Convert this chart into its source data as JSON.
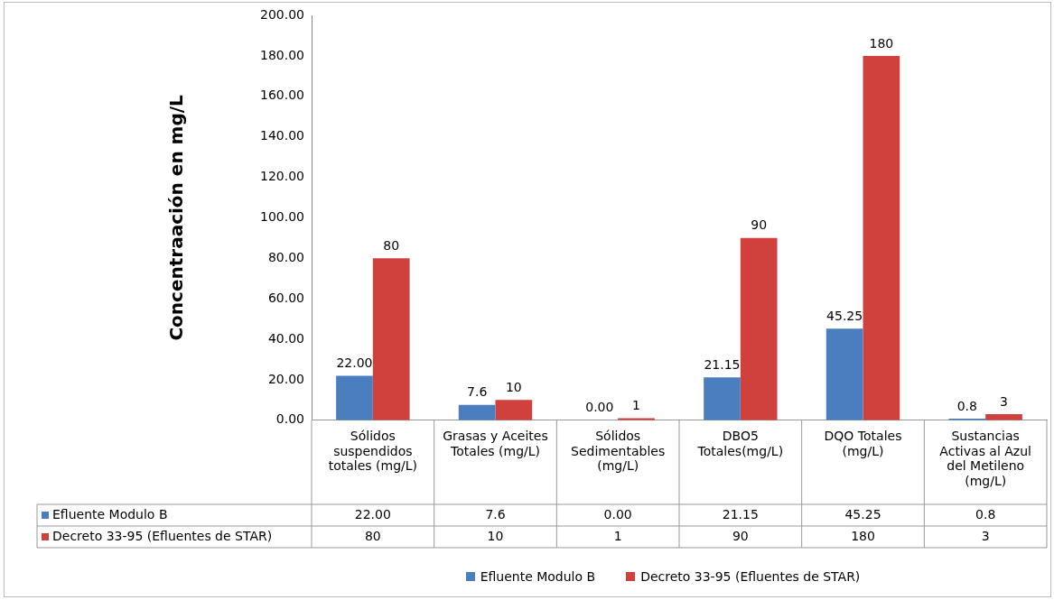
{
  "chart_data": {
    "type": "bar",
    "ylabel": "Concentraación en mg/L",
    "categories": [
      "Sólidos suspendidos totales (mg/L)",
      "Grasas y Aceites Totales (mg/L)",
      "Sólidos Sedimentables (mg/L)",
      "DBO5 Totales(mg/L)",
      "DQO Totales (mg/L)",
      "Sustancias Activas al Azul del Metileno (mg/L)"
    ],
    "series": [
      {
        "name": "Efluente Modulo B",
        "color": "#4a7ebf",
        "values": [
          22,
          7.6,
          0,
          21.15,
          45.25,
          0.8
        ],
        "value_labels": [
          "22.00",
          "7.6",
          "0.00",
          "21.15",
          "45.25",
          "0.8"
        ]
      },
      {
        "name": "Decreto 33-95 (Efluentes de STAR)",
        "color": "#d0413e",
        "values": [
          80,
          10,
          1,
          90,
          180,
          3
        ],
        "value_labels": [
          "80",
          "10",
          "1",
          "90",
          "180",
          "3"
        ]
      }
    ],
    "ylim": [
      0,
      200
    ],
    "yticks": [
      {
        "value": 0,
        "label": "0.00"
      },
      {
        "value": 20,
        "label": "20.00"
      },
      {
        "value": 40,
        "label": "40.00"
      },
      {
        "value": 60,
        "label": "60.00"
      },
      {
        "value": 80,
        "label": "80.00"
      },
      {
        "value": 100,
        "label": "100.00"
      },
      {
        "value": 120,
        "label": "120.00"
      },
      {
        "value": 140,
        "label": "140.00"
      },
      {
        "value": 160,
        "label": "160.00"
      },
      {
        "value": 180,
        "label": "180.00"
      },
      {
        "value": 200,
        "label": "200.00"
      }
    ],
    "grid": false,
    "legend": "bottom"
  }
}
